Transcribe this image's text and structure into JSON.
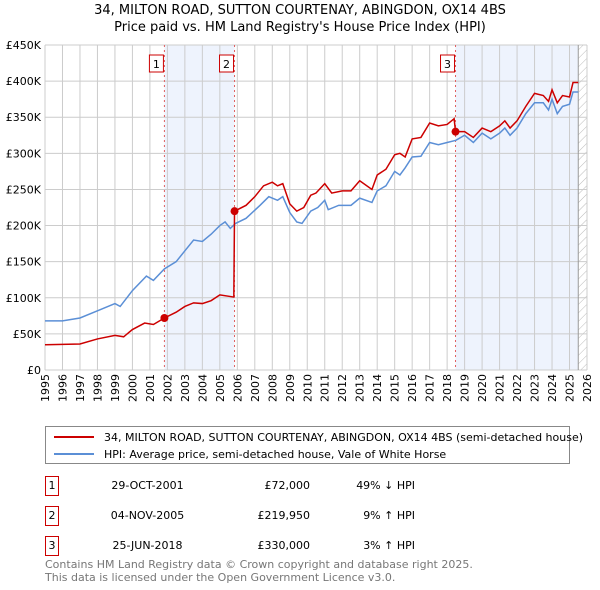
{
  "chart_data": {
    "type": "line",
    "title": "34, MILTON ROAD, SUTTON COURTENAY, ABINGDON, OX14 4BS",
    "subtitle": "Price paid vs. HM Land Registry's House Price Index (HPI)",
    "xlim": [
      1995,
      2026
    ],
    "ylim": [
      0,
      450000
    ],
    "xticks": [
      "1995",
      "1996",
      "1997",
      "1998",
      "1999",
      "2000",
      "2001",
      "2002",
      "2003",
      "2004",
      "2005",
      "2006",
      "2007",
      "2008",
      "2009",
      "2010",
      "2011",
      "2012",
      "2013",
      "2014",
      "2015",
      "2016",
      "2017",
      "2018",
      "2019",
      "2020",
      "2021",
      "2022",
      "2023",
      "2024",
      "2025",
      "2026"
    ],
    "yticks": [
      {
        "v": 0,
        "label": "£0"
      },
      {
        "v": 50000,
        "label": "£50K"
      },
      {
        "v": 100000,
        "label": "£100K"
      },
      {
        "v": 150000,
        "label": "£150K"
      },
      {
        "v": 200000,
        "label": "£200K"
      },
      {
        "v": 250000,
        "label": "£250K"
      },
      {
        "v": 300000,
        "label": "£300K"
      },
      {
        "v": 350000,
        "label": "£350K"
      },
      {
        "v": 400000,
        "label": "£400K"
      },
      {
        "v": 450000,
        "label": "£450K"
      }
    ],
    "grid": true,
    "series": [
      {
        "name": "34, MILTON ROAD, SUTTON COURTENAY, ABINGDON, OX14 4BS (semi-detached house)",
        "color": "#cc0000",
        "x": [
          1995,
          1997,
          1998,
          1999,
          1999.5,
          2000,
          2000.7,
          2001.2,
          2001.83,
          2002.5,
          2003,
          2003.5,
          2004,
          2004.5,
          2005,
          2005.8,
          2005.84,
          2006.5,
          2007,
          2007.5,
          2008,
          2008.3,
          2008.6,
          2009,
          2009.4,
          2009.8,
          2010.2,
          2010.5,
          2011,
          2011.4,
          2012,
          2012.5,
          2013,
          2013.7,
          2014,
          2014.5,
          2015,
          2015.3,
          2015.6,
          2016,
          2016.5,
          2017,
          2017.5,
          2018,
          2018.4,
          2018.48,
          2019,
          2019.5,
          2020,
          2020.5,
          2021,
          2021.3,
          2021.6,
          2022,
          2022.5,
          2023,
          2023.5,
          2023.8,
          2024,
          2024.3,
          2024.6,
          2025,
          2025.2,
          2025.5
        ],
        "y": [
          35000,
          36000,
          43000,
          48000,
          46000,
          56000,
          65000,
          63000,
          72000,
          80000,
          88000,
          93000,
          92000,
          96000,
          104000,
          101000,
          219950,
          228000,
          240000,
          255000,
          260000,
          255000,
          258000,
          230000,
          220000,
          225000,
          242000,
          245000,
          258000,
          245000,
          248000,
          248000,
          262000,
          250000,
          270000,
          278000,
          298000,
          300000,
          295000,
          320000,
          322000,
          342000,
          338000,
          340000,
          348000,
          330000,
          330000,
          322000,
          335000,
          330000,
          338000,
          345000,
          335000,
          345000,
          365000,
          383000,
          380000,
          372000,
          388000,
          370000,
          380000,
          378000,
          398000,
          398000
        ]
      },
      {
        "name": "HPI: Average price, semi-detached house, Vale of White Horse",
        "color": "#5b8fd6",
        "x": [
          1995,
          1996,
          1997,
          1998,
          1999,
          1999.3,
          2000,
          2000.8,
          2001.2,
          2001.83,
          2002.5,
          2003,
          2003.5,
          2004,
          2004.5,
          2005,
          2005.3,
          2005.6,
          2005.9,
          2006.5,
          2007.3,
          2007.8,
          2008.3,
          2008.6,
          2009,
          2009.4,
          2009.7,
          2010.2,
          2010.6,
          2011,
          2011.2,
          2011.8,
          2012.5,
          2013,
          2013.7,
          2014,
          2014.5,
          2015,
          2015.3,
          2015.6,
          2016,
          2016.5,
          2017,
          2017.5,
          2018,
          2018.5,
          2019,
          2019.5,
          2020,
          2020.5,
          2021,
          2021.3,
          2021.6,
          2022,
          2022.5,
          2023,
          2023.5,
          2023.8,
          2024,
          2024.3,
          2024.6,
          2025,
          2025.2,
          2025.5
        ],
        "y": [
          68000,
          68000,
          72000,
          82000,
          92000,
          88000,
          110000,
          130000,
          124000,
          140000,
          150000,
          165000,
          180000,
          178000,
          188000,
          200000,
          205000,
          196000,
          203000,
          210000,
          228000,
          240000,
          235000,
          240000,
          218000,
          205000,
          203000,
          220000,
          225000,
          235000,
          222000,
          228000,
          228000,
          238000,
          232000,
          248000,
          255000,
          275000,
          270000,
          280000,
          295000,
          296000,
          315000,
          312000,
          315000,
          318000,
          325000,
          315000,
          328000,
          320000,
          328000,
          335000,
          325000,
          335000,
          355000,
          370000,
          370000,
          360000,
          375000,
          355000,
          365000,
          368000,
          385000,
          385000
        ]
      }
    ],
    "sales": [
      {
        "n": "1",
        "x": 2001.83,
        "price": 72000,
        "date": "29-OCT-2001",
        "price_label": "£72,000",
        "hpi": "49% ↓ HPI"
      },
      {
        "n": "2",
        "x": 2005.84,
        "price": 219950,
        "date": "04-NOV-2005",
        "price_label": "£219,950",
        "hpi": "9% ↑ HPI"
      },
      {
        "n": "3",
        "x": 2018.48,
        "price": 330000,
        "date": "25-JUN-2018",
        "price_label": "£330,000",
        "hpi": "3% ↑ HPI"
      }
    ],
    "shaded": [
      [
        2001.83,
        2005.84
      ],
      [
        2018.48,
        2025.5
      ]
    ],
    "hatched_from": 2025.5,
    "legend_position": "bottom"
  },
  "footer": {
    "line1": "Contains HM Land Registry data © Crown copyright and database right 2025.",
    "line2": "This data is licensed under the Open Government Licence v3.0."
  }
}
